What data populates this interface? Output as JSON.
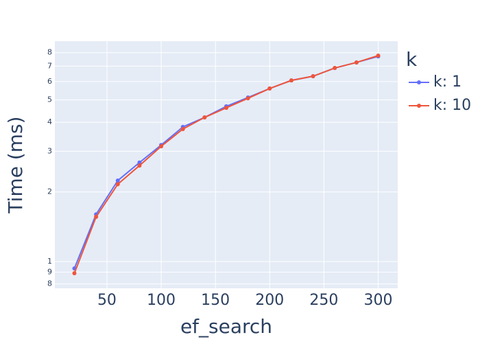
{
  "chart_data": {
    "type": "line",
    "x_label": "ef_search",
    "y_label": "Time (ms)",
    "legend_title": "k",
    "x": [
      20,
      40,
      60,
      80,
      100,
      120,
      140,
      160,
      180,
      200,
      220,
      240,
      260,
      280,
      300
    ],
    "series": [
      {
        "name": "k: 1",
        "color": "#636efa",
        "values": [
          0.934,
          1.6,
          2.24,
          2.68,
          3.19,
          3.82,
          4.2,
          4.69,
          5.12,
          5.6,
          6.07,
          6.33,
          6.87,
          7.26,
          7.71
        ]
      },
      {
        "name": "k: 10",
        "color": "#ef553b",
        "values": [
          0.89,
          1.56,
          2.16,
          2.6,
          3.15,
          3.74,
          4.2,
          4.62,
          5.08,
          5.6,
          6.07,
          6.33,
          6.87,
          7.26,
          7.77
        ]
      }
    ],
    "xlim": [
      2,
      318
    ],
    "xticks": [
      50,
      100,
      150,
      200,
      250,
      300
    ],
    "ylim": [
      0.766,
      8.97
    ],
    "yscale": "log",
    "yticks": [
      {
        "value": 0.8,
        "label": "8"
      },
      {
        "value": 0.9,
        "label": "9"
      },
      1,
      2,
      3,
      4,
      5,
      6,
      7,
      8
    ],
    "grid": true
  }
}
